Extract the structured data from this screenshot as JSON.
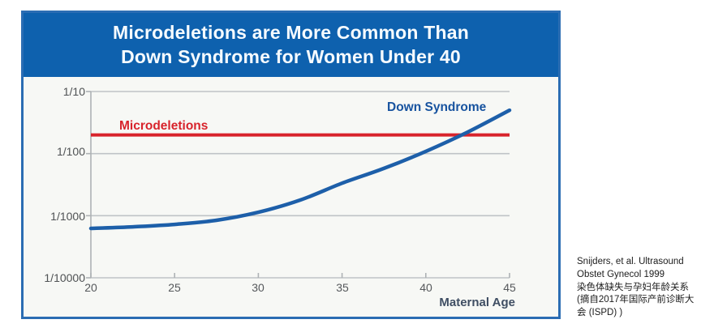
{
  "header": {
    "title_line1": "Microdeletions are More Common Than",
    "title_line2": "Down Syndrome for Women Under 40"
  },
  "chart_data": {
    "type": "line",
    "title": "Microdeletions are More Common Than Down Syndrome for Women Under 40",
    "xlabel": "Maternal Age",
    "ylabel": "",
    "x_range": [
      20,
      45
    ],
    "x_ticks": [
      "20",
      "25",
      "30",
      "35",
      "40",
      "45"
    ],
    "y_scale": "log",
    "y_ticks": [
      "1/10",
      "1/100",
      "1/1000",
      "1/10000"
    ],
    "y_gridline_denominators": [
      10,
      100,
      1000,
      10000
    ],
    "ylim": [
      "1/10000",
      "1/10"
    ],
    "grid": "horizontal gridlines on",
    "legend_position": "inline labels on plot",
    "series": [
      {
        "name": "Down Syndrome",
        "color": "#1d5fa9",
        "ages": [
          20,
          22.5,
          25,
          27.5,
          30,
          32.5,
          35,
          37.5,
          40,
          42.5,
          45
        ],
        "risk": [
          "1/1600",
          "1/1510",
          "1/1380",
          "1/1185",
          "1/880",
          "1/560",
          "1/300",
          "1/173",
          "1/92",
          "1/45",
          "1/20"
        ],
        "risk_denominators": [
          1600,
          1510,
          1380,
          1185,
          880,
          560,
          300,
          173,
          92,
          45,
          20
        ]
      },
      {
        "name": "Microdeletions",
        "color": "#d8232b",
        "risk": "1/50 (constant across maternal ages 20-45)",
        "risk_denominator": 50
      }
    ]
  },
  "caption": {
    "lines": [
      "Snijders, et al. Ultrasound",
      "Obstet Gynecol 1999",
      " 染色体缺失与孕妇年龄关系",
      "(摘自2017年国际产前诊断大",
      "会 (ISPD) )"
    ]
  },
  "colors": {
    "banner_bg": "#0e61ae",
    "banner_text": "#f6fbff",
    "figure_border": "#2b6db3",
    "plot_bg": "#f7f8f5",
    "down_syndrome_line": "#1d5fa9",
    "microdeletions_line": "#d8232b",
    "gridline": "#bfc3c6",
    "axis": "#aeb2b5",
    "tick_label": "#55585b",
    "axis_title": "#3f4e63"
  }
}
